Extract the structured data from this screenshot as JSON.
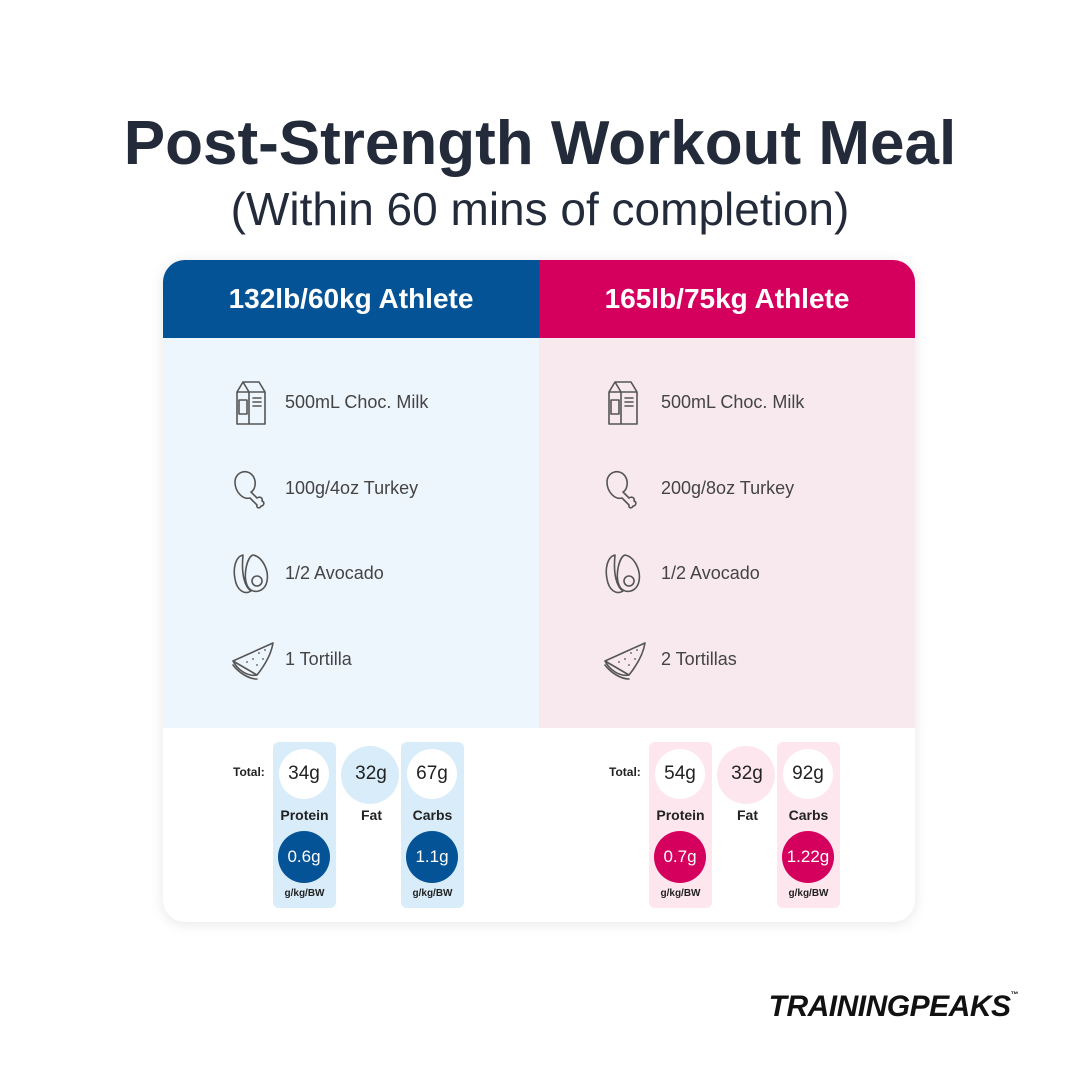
{
  "title": "Post-Strength Workout Meal",
  "subtitle": "(Within 60 mins of completion)",
  "columns": [
    {
      "heading": "132lb/60kg Athlete",
      "color": "#045396",
      "body_color": "#eef6fd",
      "pill_color": "#d8ecfa",
      "items": [
        "500mL Choc. Milk",
        "100g/4oz Turkey",
        "1/2 Avocado",
        "1 Tortilla"
      ],
      "totals": {
        "label": "Total:",
        "protein": "34g",
        "fat": "32g",
        "carbs": "67g",
        "protein_label": "Protein",
        "fat_label": "Fat",
        "carbs_label": "Carbs",
        "protein_per_kg": "0.6g",
        "carbs_per_kg": "1.1g",
        "unit": "g/kg/BW"
      }
    },
    {
      "heading": "165lb/75kg Athlete",
      "color": "#d5005e",
      "body_color": "#f7e9ee",
      "pill_color": "#fde6ee",
      "items": [
        "500mL Choc. Milk",
        "200g/8oz Turkey",
        "1/2 Avocado",
        "2 Tortillas"
      ],
      "totals": {
        "label": "Total:",
        "protein": "54g",
        "fat": "32g",
        "carbs": "92g",
        "protein_label": "Protein",
        "fat_label": "Fat",
        "carbs_label": "Carbs",
        "protein_per_kg": "0.7g",
        "carbs_per_kg": "1.22g",
        "unit": "g/kg/BW"
      }
    }
  ],
  "logo": "TRAININGPEAKS",
  "trademark": "™"
}
